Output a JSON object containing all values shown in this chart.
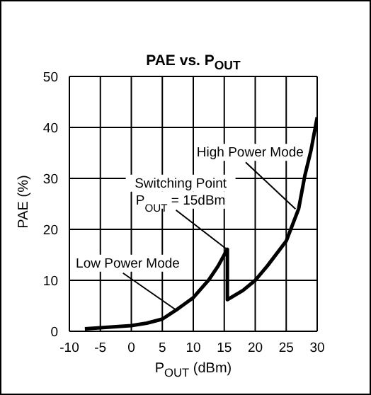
{
  "chart_data": {
    "type": "line",
    "title": "PAE vs. P$_{OUT}$",
    "xlabel": "P$_{OUT}$ (dBm)",
    "ylabel": "PAE (%)",
    "series": [
      {
        "color": "#000000",
        "x": [
          -7.5,
          -5,
          -2.5,
          0,
          2.5,
          5,
          7.5,
          10,
          12.5,
          14,
          15.5,
          15.5,
          18,
          20,
          22,
          25,
          27,
          28,
          29,
          30
        ],
        "values": [
          0.5,
          0.7,
          0.9,
          1.1,
          1.6,
          2.4,
          4.4,
          6.6,
          10.1,
          12.8,
          16.1,
          6.2,
          8,
          10,
          12.9,
          17.7,
          24,
          30.5,
          35.5,
          42
        ]
      }
    ],
    "xlim": [
      -10,
      30
    ],
    "xticks": [
      -10,
      -5,
      0,
      5,
      10,
      15,
      20,
      25,
      30
    ],
    "ylim": [
      0,
      50
    ],
    "yticks": [
      0,
      10,
      20,
      30,
      40,
      50
    ],
    "grid": true,
    "marker": "none",
    "line_style": "solid",
    "annotations": [
      {
        "text": "High Power Mode",
        "x": 26.5,
        "y": 24
      },
      {
        "text": "Switching Point\nP$_{OUT}$ = 15dBm",
        "x": 15.5,
        "y": 16
      },
      {
        "text": "Low Power Mode",
        "x": 7.2,
        "y": 4.2
      }
    ]
  }
}
